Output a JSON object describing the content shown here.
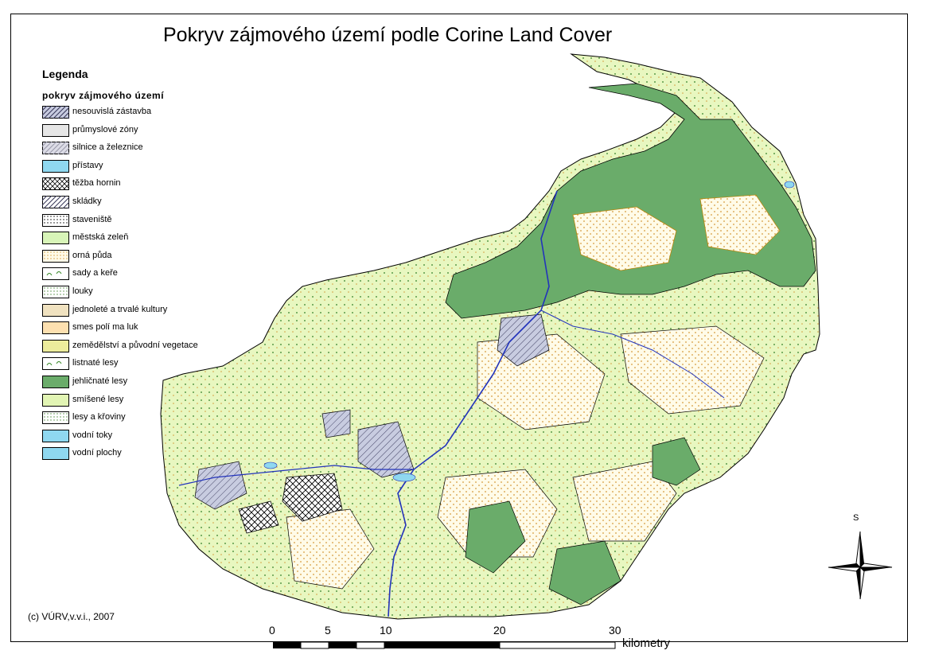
{
  "title": "Pokryv zájmového území podle Corine Land Cover",
  "legend": {
    "heading": "Legenda",
    "subheading": "pokryv zájmového území",
    "items": [
      {
        "label": "nesouvislá zástavba",
        "fill": "#c8cce0",
        "pattern": "diag"
      },
      {
        "label": "průmyslové zóny",
        "fill": "#e6e6e6",
        "pattern": "none"
      },
      {
        "label": "silnice a železnice",
        "fill": "#dcdce6",
        "pattern": "diag-light"
      },
      {
        "label": "přístavy",
        "fill": "#8fd8f0",
        "pattern": "none"
      },
      {
        "label": "těžba hornin",
        "fill": "#ffffff",
        "pattern": "cross"
      },
      {
        "label": "skládky",
        "fill": "#ffffff",
        "pattern": "diag"
      },
      {
        "label": "staveniště",
        "fill": "#ffffff",
        "pattern": "dots"
      },
      {
        "label": "městská zeleň",
        "fill": "#d8f5b8",
        "pattern": "none"
      },
      {
        "label": "orná půda",
        "fill": "#fffbe8",
        "pattern": "orange-dots"
      },
      {
        "label": "sady a keře",
        "fill": "#ffffff",
        "pattern": "green-marks"
      },
      {
        "label": "louky",
        "fill": "#ffffff",
        "pattern": "green-dots"
      },
      {
        "label": "jednoleté a trvalé kultury",
        "fill": "#f0e2c0",
        "pattern": "none"
      },
      {
        "label": "smes polí ma luk",
        "fill": "#fde0b0",
        "pattern": "none"
      },
      {
        "label": "zemědělství a původní vegetace",
        "fill": "#ecec9c",
        "pattern": "none"
      },
      {
        "label": "listnaté lesy",
        "fill": "#ffffff",
        "pattern": "green-curl"
      },
      {
        "label": "jehličnaté lesy",
        "fill": "#6aac6a",
        "pattern": "none"
      },
      {
        "label": "smíšené lesy",
        "fill": "#e2f5b4",
        "pattern": "none"
      },
      {
        "label": "lesy a křoviny",
        "fill": "#ffffff",
        "pattern": "green-stipple"
      },
      {
        "label": "vodní toky",
        "fill": "#8fd8f0",
        "pattern": "none"
      },
      {
        "label": "vodní plochy",
        "fill": "#8fd8f0",
        "pattern": "none"
      }
    ]
  },
  "copyright": "(c) VÚRV,v.v.i., 2007",
  "compass": {
    "label": "S"
  },
  "scale": {
    "ticks": [
      "0",
      "5",
      "10",
      "20",
      "30"
    ],
    "unit": "kilometry"
  },
  "colors": {
    "conifer": "#6aac6a",
    "mixed": "#e2f5b4",
    "arable": "#fffbe8",
    "arable_dot": "#d49a3a",
    "water": "#2233bb",
    "boundary": "#000000"
  }
}
